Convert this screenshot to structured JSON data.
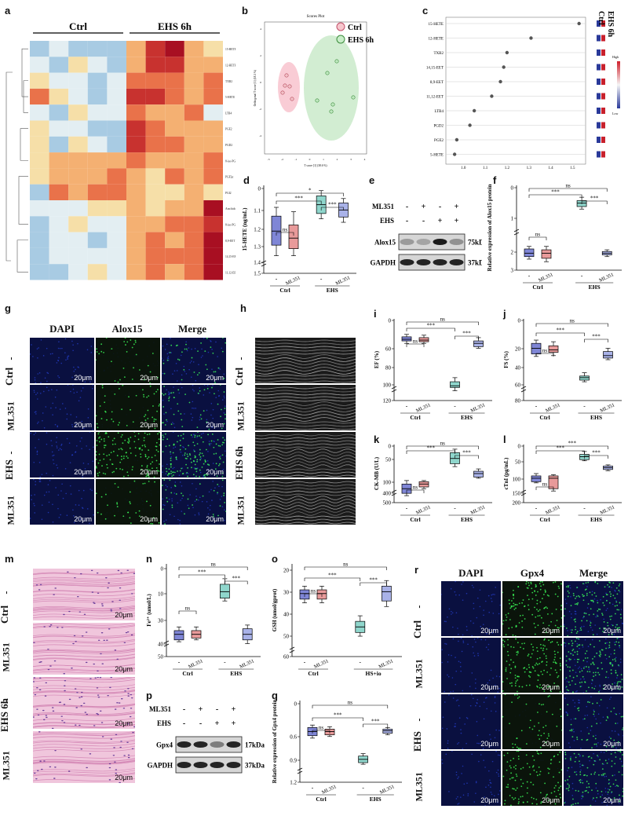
{
  "a": {
    "label": "a",
    "groups": [
      "Ctrl",
      "EHS 6h"
    ],
    "rows": [
      "15-HETE",
      "12-HETE",
      "TXB2",
      "5-HETE",
      "LTB4",
      "PGE2",
      "PGD2",
      "8-iso-PGF2α",
      "PGF2α",
      "PGI2",
      "Arachidonic acid",
      "8-iso-PGE",
      "8,9-EET",
      "14,15-EET",
      "11,12-EET"
    ]
  },
  "b": {
    "label": "b",
    "title": "Scores Plot",
    "legend": [
      "Ctrl",
      "EHS 6h"
    ],
    "xlabel": "T score [1] (38.6 %)",
    "ylabel": "Orthogonal T score [1] (18.1 %)",
    "xticks": [
      "-3",
      "-2",
      "-1",
      "0",
      "1",
      "2",
      "3",
      "4"
    ],
    "yticks": [
      "4",
      "2",
      "0",
      "-2",
      "-4"
    ]
  },
  "c": {
    "label": "c",
    "cols": [
      "Ctrl",
      "EHS 6h"
    ],
    "xlabel": "VIP scores",
    "xticks": [
      "1.0",
      "1.1",
      "1.2",
      "1.3",
      "1.4",
      "1.5"
    ],
    "scale": [
      "High",
      "Low"
    ]
  },
  "d": {
    "label": "d",
    "ylabel": "15-HETE (ng/mL)",
    "yticks": [
      "1.5",
      "1.4",
      "1.3",
      "1.2",
      "1.1",
      "0"
    ],
    "sig": [
      "ns",
      "***",
      "*",
      "***",
      "ns"
    ]
  },
  "e": {
    "label": "e",
    "row1": "ML351",
    "row2": "EHS",
    "signs1": [
      "-",
      "+",
      "-",
      "+"
    ],
    "signs2": [
      "-",
      "-",
      "+",
      "+"
    ],
    "bands": [
      "Alox15",
      "GAPDH"
    ],
    "kda": [
      "75kDa",
      "37kDa"
    ]
  },
  "f": {
    "label": "f",
    "ylabel": "Relative expression of Alox15 protein",
    "yticks": [
      "3",
      "2",
      "1",
      "0"
    ],
    "sig": [
      "ns",
      "***",
      "***",
      "ns"
    ]
  },
  "g": {
    "label": "g",
    "cols": [
      "DAPI",
      "Alox15",
      "Merge"
    ],
    "rows": [
      "-",
      "ML351",
      "-",
      "ML351"
    ],
    "groups": [
      "Ctrl",
      "EHS"
    ],
    "scalebar": "20μm"
  },
  "h": {
    "label": "h",
    "rows": [
      "-",
      "ML351",
      "-",
      "ML351"
    ],
    "groups": [
      "Ctrl",
      "EHS 6h"
    ]
  },
  "i": {
    "label": "i",
    "ylabel": "EF (%)",
    "yticks": [
      "120",
      "100",
      "80",
      "60",
      "0"
    ],
    "sig": [
      "ns",
      "***",
      "ns",
      "***"
    ]
  },
  "j": {
    "label": "j",
    "ylabel": "FS (%)",
    "yticks": [
      "80",
      "60",
      "40",
      "20",
      "0"
    ],
    "sig": [
      "ns",
      "***",
      "ns",
      "***"
    ]
  },
  "k": {
    "label": "k",
    "ylabel": "CK-MB (U/L)",
    "yticks": [
      "500",
      "400",
      "100",
      "50",
      "0"
    ],
    "sig": [
      "ns",
      "***",
      "ns",
      "***"
    ]
  },
  "l": {
    "label": "l",
    "ylabel": "cTnI (pg/mL)",
    "yticks": [
      "200",
      "150",
      "100",
      "50",
      "0"
    ],
    "sig": [
      "***",
      "***",
      "***",
      "ns"
    ]
  },
  "m": {
    "label": "m",
    "rows": [
      "-",
      "ML351",
      "-",
      "ML351"
    ],
    "groups": [
      "Ctrl",
      "EHS 6h"
    ],
    "scalebar": "20μm"
  },
  "n": {
    "label": "n",
    "ylabel": "Fe²⁺ (umol/L)",
    "yticks": [
      "50",
      "40",
      "30",
      "10",
      "0"
    ],
    "sig": [
      "ns",
      "***",
      "***",
      "ns"
    ]
  },
  "o": {
    "label": "o",
    "ylabel": "GSH (umol/gprot)",
    "yticks": [
      "60",
      "50",
      "40",
      "30",
      "20"
    ],
    "sig": [
      "ns",
      "***",
      "***",
      "ns"
    ],
    "group2": "HS+io"
  },
  "p": {
    "label": "p",
    "row1": "ML351",
    "row2": "EHS",
    "signs1": [
      "-",
      "+",
      "-",
      "+"
    ],
    "signs2": [
      "-",
      "-",
      "+",
      "+"
    ],
    "bands": [
      "Gpx4",
      "GAPDH"
    ],
    "kda": [
      "17kDa",
      "37kDa"
    ]
  },
  "q": {
    "label": "q",
    "ylabel": "Relative expression of Gpx4 protein",
    "yticks": [
      "1.2",
      "0.9",
      "0.6",
      "0"
    ],
    "sig": [
      "ns",
      "***",
      "***",
      "ns"
    ]
  },
  "r": {
    "label": "r",
    "cols": [
      "DAPI",
      "Gpx4",
      "Merge"
    ],
    "rows": [
      "-",
      "ML351",
      "-",
      "ML351"
    ],
    "groups": [
      "Ctrl",
      "EHS"
    ],
    "scalebar": "20μm"
  },
  "common": {
    "xgroup1": "Ctrl",
    "xgroup2": "EHS",
    "dash": "-",
    "drug": "ML351"
  },
  "colors": {
    "ctrl": "#7f86d6",
    "ctrl_ml": "#e89a9a",
    "ehs": "#8fd6cc",
    "ehs_ml": "#a9b2e8",
    "pink_ell": "#f6b7c3",
    "green_ell": "#bfe6bf"
  }
}
